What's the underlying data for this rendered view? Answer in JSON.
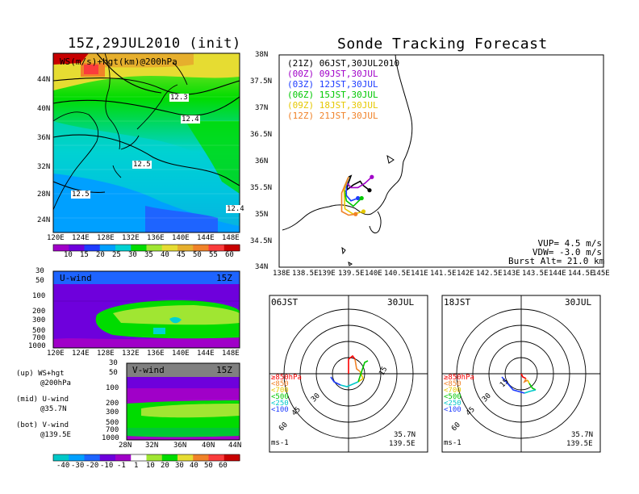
{
  "main_title": "Sonde Tracking Forecast",
  "left_title": "15Z,29JUL2010 (init)",
  "panels": {
    "upper_map": {
      "label": "WS(m/s)+hgt(km)@200hPa",
      "contour_labels": [
        "12.3",
        "12.4",
        "12.5",
        "12.5",
        "12.4"
      ],
      "x_ticks": [
        "120E",
        "124E",
        "128E",
        "132E",
        "136E",
        "140E",
        "144E",
        "148E"
      ],
      "y_ticks": [
        "44N",
        "40N",
        "36N",
        "32N",
        "28N",
        "24N"
      ]
    },
    "ws_colorbar": {
      "labels": [
        "10",
        "15",
        "20",
        "25",
        "30",
        "35",
        "40",
        "45",
        "50",
        "55",
        "60"
      ],
      "colors": [
        "#a000c8",
        "#6e00dc",
        "#1e3cff",
        "#00a0ff",
        "#00d2d2",
        "#00dc00",
        "#a0e632",
        "#e6dc32",
        "#e6af2d",
        "#f08228",
        "#fa3c3c",
        "#c80000"
      ]
    },
    "u_section": {
      "label": "U-wind",
      "time": "15Z",
      "y_ticks": [
        "30",
        "50",
        "100",
        "200",
        "300",
        "500",
        "700",
        "1000"
      ],
      "x_ticks": [
        "120E",
        "124E",
        "128E",
        "132E",
        "136E",
        "140E",
        "144E",
        "148E"
      ]
    },
    "v_section": {
      "label": "V-wind",
      "time": "15Z",
      "y_ticks": [
        "30",
        "50",
        "100",
        "200",
        "300",
        "500",
        "700",
        "1000"
      ],
      "x_ticks": [
        "28N",
        "32N",
        "36N",
        "40N",
        "44N"
      ]
    },
    "bottom_colorbar": {
      "labels": [
        "-40",
        "-30",
        "-20",
        "-10",
        "-1",
        "1",
        "10",
        "20",
        "30",
        "40",
        "50",
        "60"
      ]
    },
    "legend_notes": [
      {
        "head": "(up) WS+hgt",
        "sub": "@200hPa"
      },
      {
        "head": "(mid) U-wind",
        "sub": "@35.7N"
      },
      {
        "head": "(bot) V-wind",
        "sub": "@139.5E"
      }
    ],
    "track_map": {
      "entries": [
        {
          "label": "(21Z) 06JST,30JUL2010",
          "color": "#000000"
        },
        {
          "label": "(00Z) 09JST,30JUL",
          "color": "#a000c8"
        },
        {
          "label": "(03Z) 12JST,30JUL",
          "color": "#1e3cff"
        },
        {
          "label": "(06Z) 15JST,30JUL",
          "color": "#00c800"
        },
        {
          "label": "(09Z) 18JST,30JUL",
          "color": "#e6c800"
        },
        {
          "label": "(12Z) 21JST,30JUL",
          "color": "#f08228"
        }
      ],
      "x_ticks": [
        "138E",
        "138.5E",
        "139E",
        "139.5E",
        "140E",
        "140.5E",
        "141E",
        "141.5E",
        "142E",
        "142.5E",
        "143E",
        "143.5E",
        "144E",
        "144.5E",
        "145E"
      ],
      "y_ticks": [
        "38N",
        "37.5N",
        "37N",
        "36.5N",
        "36N",
        "35.5N",
        "35N",
        "34.5N",
        "34N"
      ],
      "params": [
        "VUP= 4.5 m/s",
        "VDW= -3.0 m/s",
        "Burst Alt= 21.0 km"
      ]
    },
    "hodo_left": {
      "time": "06JST",
      "date": "30JUL",
      "rings": [
        "15",
        "30",
        "45",
        "60"
      ],
      "unit": "ms-1",
      "lat": "35.7N",
      "lon": "139.5E"
    },
    "hodo_right": {
      "time": "18JST",
      "date": "30JUL",
      "rings": [
        "15",
        "30",
        "45",
        "60"
      ],
      "unit": "ms-1",
      "lat": "35.7N",
      "lon": "139.5E"
    },
    "hodo_legend": [
      {
        "label": "≥850hPa",
        "color": "#fa0000"
      },
      {
        "label": "<850",
        "color": "#f08228"
      },
      {
        "label": "<700",
        "color": "#e6c800"
      },
      {
        "label": "<500",
        "color": "#00c800"
      },
      {
        "label": "<250",
        "color": "#00c8c8"
      },
      {
        "label": "<100",
        "color": "#1e3cff"
      }
    ]
  },
  "chart_data": [
    {
      "type": "heatmap",
      "title": "WS(m/s)+hgt(km)@200hPa",
      "xlim": [
        "120E",
        "150E"
      ],
      "ylim": [
        "22N",
        "47N"
      ],
      "colorbar_levels": [
        10,
        15,
        20,
        25,
        30,
        35,
        40,
        45,
        50,
        55,
        60
      ],
      "contour_levels_km": [
        12.3,
        12.4,
        12.5
      ]
    },
    {
      "type": "line",
      "title": "Sonde Tracking Forecast",
      "xlim": [
        138,
        145
      ],
      "ylim": [
        34,
        38
      ],
      "series": [
        {
          "name": "(21Z) 06JST,30JUL2010",
          "x": [
            139.5,
            139.55,
            139.5,
            139.45,
            139.6,
            139.75,
            139.8,
            139.95
          ],
          "y": [
            35.7,
            35.72,
            35.6,
            35.45,
            35.55,
            35.62,
            35.55,
            35.45
          ]
        },
        {
          "name": "(00Z) 09JST,30JUL",
          "x": [
            139.5,
            139.45,
            139.55,
            139.7,
            139.85,
            140.0
          ],
          "y": [
            35.7,
            35.6,
            35.5,
            35.5,
            35.58,
            35.7
          ]
        },
        {
          "name": "(03Z) 12JST,30JUL",
          "x": [
            139.5,
            139.45,
            139.45,
            139.55,
            139.7
          ],
          "y": [
            35.7,
            35.55,
            35.35,
            35.25,
            35.3
          ]
        },
        {
          "name": "(06Z) 15JST,30JUL",
          "x": [
            139.5,
            139.4,
            139.45,
            139.6,
            139.78
          ],
          "y": [
            35.7,
            35.5,
            35.25,
            35.15,
            35.3
          ]
        },
        {
          "name": "(09Z) 18JST,30JUL",
          "x": [
            139.5,
            139.4,
            139.42,
            139.6,
            139.82
          ],
          "y": [
            35.7,
            35.45,
            35.1,
            35.0,
            35.05
          ]
        },
        {
          "name": "(12Z) 21JST,30JUL",
          "x": [
            139.5,
            139.35,
            139.35,
            139.5,
            139.65
          ],
          "y": [
            35.7,
            35.4,
            35.05,
            34.98,
            35.0
          ]
        }
      ]
    }
  ]
}
